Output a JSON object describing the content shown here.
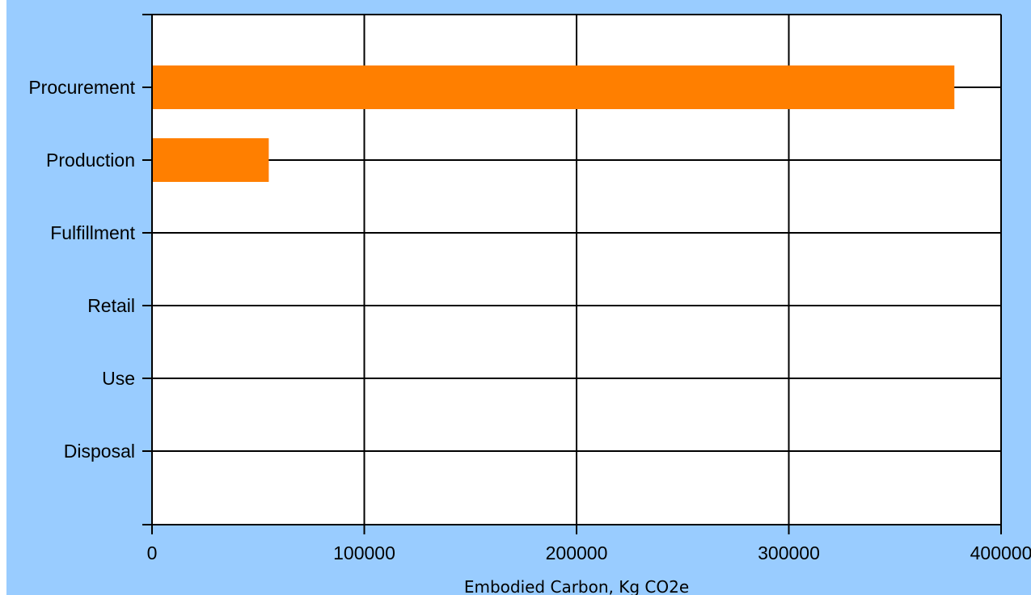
{
  "colors": {
    "background": "#99ccff",
    "plot_background": "#ffffff",
    "bar": "#ff7f00",
    "grid": "#000000"
  },
  "chart_data": {
    "type": "bar",
    "orientation": "horizontal",
    "categories": [
      "Procurement",
      "Production",
      "Fulfillment",
      "Retail",
      "Use",
      "Disposal"
    ],
    "values": [
      378000,
      55000,
      0,
      0,
      0,
      0
    ],
    "xlabel": "Embodied Carbon, Kg CO2e",
    "xlim": [
      0,
      400000
    ],
    "xticks": [
      "0",
      "100000",
      "200000",
      "300000",
      "400000"
    ],
    "grid": true
  }
}
